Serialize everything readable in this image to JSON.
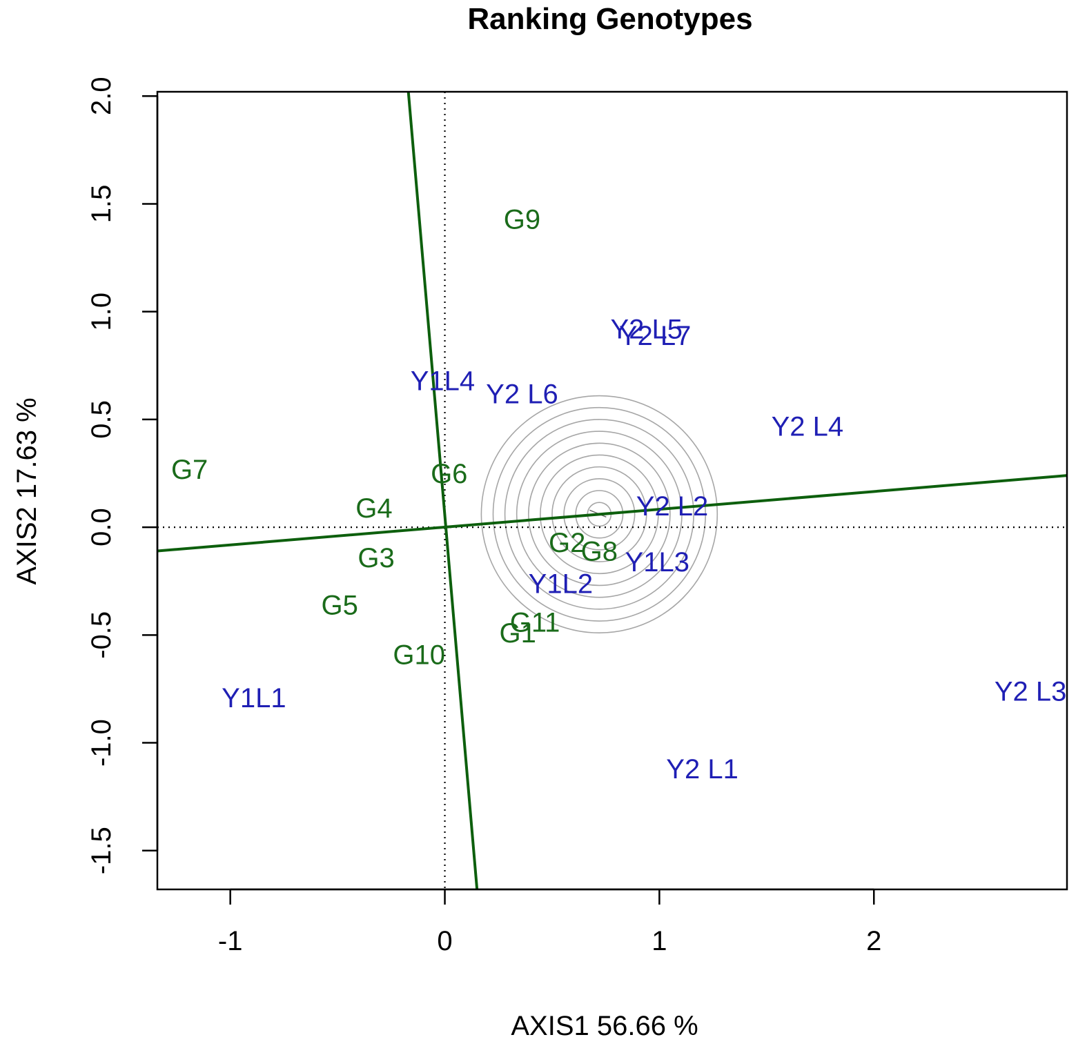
{
  "chart_data": {
    "type": "scatter",
    "title": "Ranking Genotypes",
    "xlabel": "AXIS1 56.66 %",
    "ylabel": "AXIS2 17.63 %",
    "xlim": [
      -1.34,
      2.9
    ],
    "ylim": [
      -1.68,
      2.02
    ],
    "xticks": [
      -1,
      0,
      1,
      2
    ],
    "xtick_labels": [
      "-1",
      "0",
      "1",
      "2"
    ],
    "yticks": [
      -1.5,
      -1.0,
      -0.5,
      0.0,
      0.5,
      1.0,
      1.5,
      2.0
    ],
    "ytick_labels": [
      "-1.5",
      "-1.0",
      "-0.5",
      "0.0",
      "0.5",
      "1.0",
      "1.5",
      "2.0"
    ],
    "grid": false,
    "colors": {
      "genotype": "#1a6b1a",
      "environment": "#1f1fb4",
      "line": "#0d5f0d",
      "circle": "#a6a6a6"
    },
    "genotypes": [
      {
        "label": "G9",
        "x": 0.36,
        "y": 1.43
      },
      {
        "label": "G7",
        "x": -1.19,
        "y": 0.27
      },
      {
        "label": "G6",
        "x": 0.02,
        "y": 0.25
      },
      {
        "label": "G4",
        "x": -0.33,
        "y": 0.09
      },
      {
        "label": "G3",
        "x": -0.32,
        "y": -0.14
      },
      {
        "label": "G5",
        "x": -0.49,
        "y": -0.36
      },
      {
        "label": "G10",
        "x": -0.12,
        "y": -0.59
      },
      {
        "label": "G11",
        "x": 0.42,
        "y": -0.44
      },
      {
        "label": "G1",
        "x": 0.34,
        "y": -0.49
      },
      {
        "label": "G2",
        "x": 0.57,
        "y": -0.07
      },
      {
        "label": "G8",
        "x": 0.72,
        "y": -0.11
      }
    ],
    "environments": [
      {
        "label": "Y2 L5",
        "x": 0.94,
        "y": 0.92
      },
      {
        "label": "Y2 L7",
        "x": 0.98,
        "y": 0.89
      },
      {
        "label": "Y1L4",
        "x": -0.01,
        "y": 0.68
      },
      {
        "label": "Y2 L6",
        "x": 0.36,
        "y": 0.62
      },
      {
        "label": "Y2 L4",
        "x": 1.69,
        "y": 0.47
      },
      {
        "label": "Y2 L2",
        "x": 1.06,
        "y": 0.1
      },
      {
        "label": "Y1L3",
        "x": 0.99,
        "y": -0.16
      },
      {
        "label": "Y1L2",
        "x": 0.54,
        "y": -0.26
      },
      {
        "label": "Y1L1",
        "x": -0.89,
        "y": -0.79
      },
      {
        "label": "Y2 L1",
        "x": 1.2,
        "y": -1.12
      },
      {
        "label": "Y2 L3",
        "x": 2.73,
        "y": -0.76
      }
    ],
    "average_environment_axis": {
      "from": [
        -1.34,
        -0.11
      ],
      "to": [
        2.9,
        0.24
      ]
    },
    "perpendicular_axis": {
      "from": [
        -0.17,
        2.02
      ],
      "to": [
        0.15,
        -1.68
      ]
    },
    "ideal_center": {
      "x": 0.72,
      "y": 0.06
    },
    "circle_radii": [
      0.055,
      0.11,
      0.165,
      0.22,
      0.275,
      0.33,
      0.385,
      0.44,
      0.495,
      0.55
    ]
  }
}
